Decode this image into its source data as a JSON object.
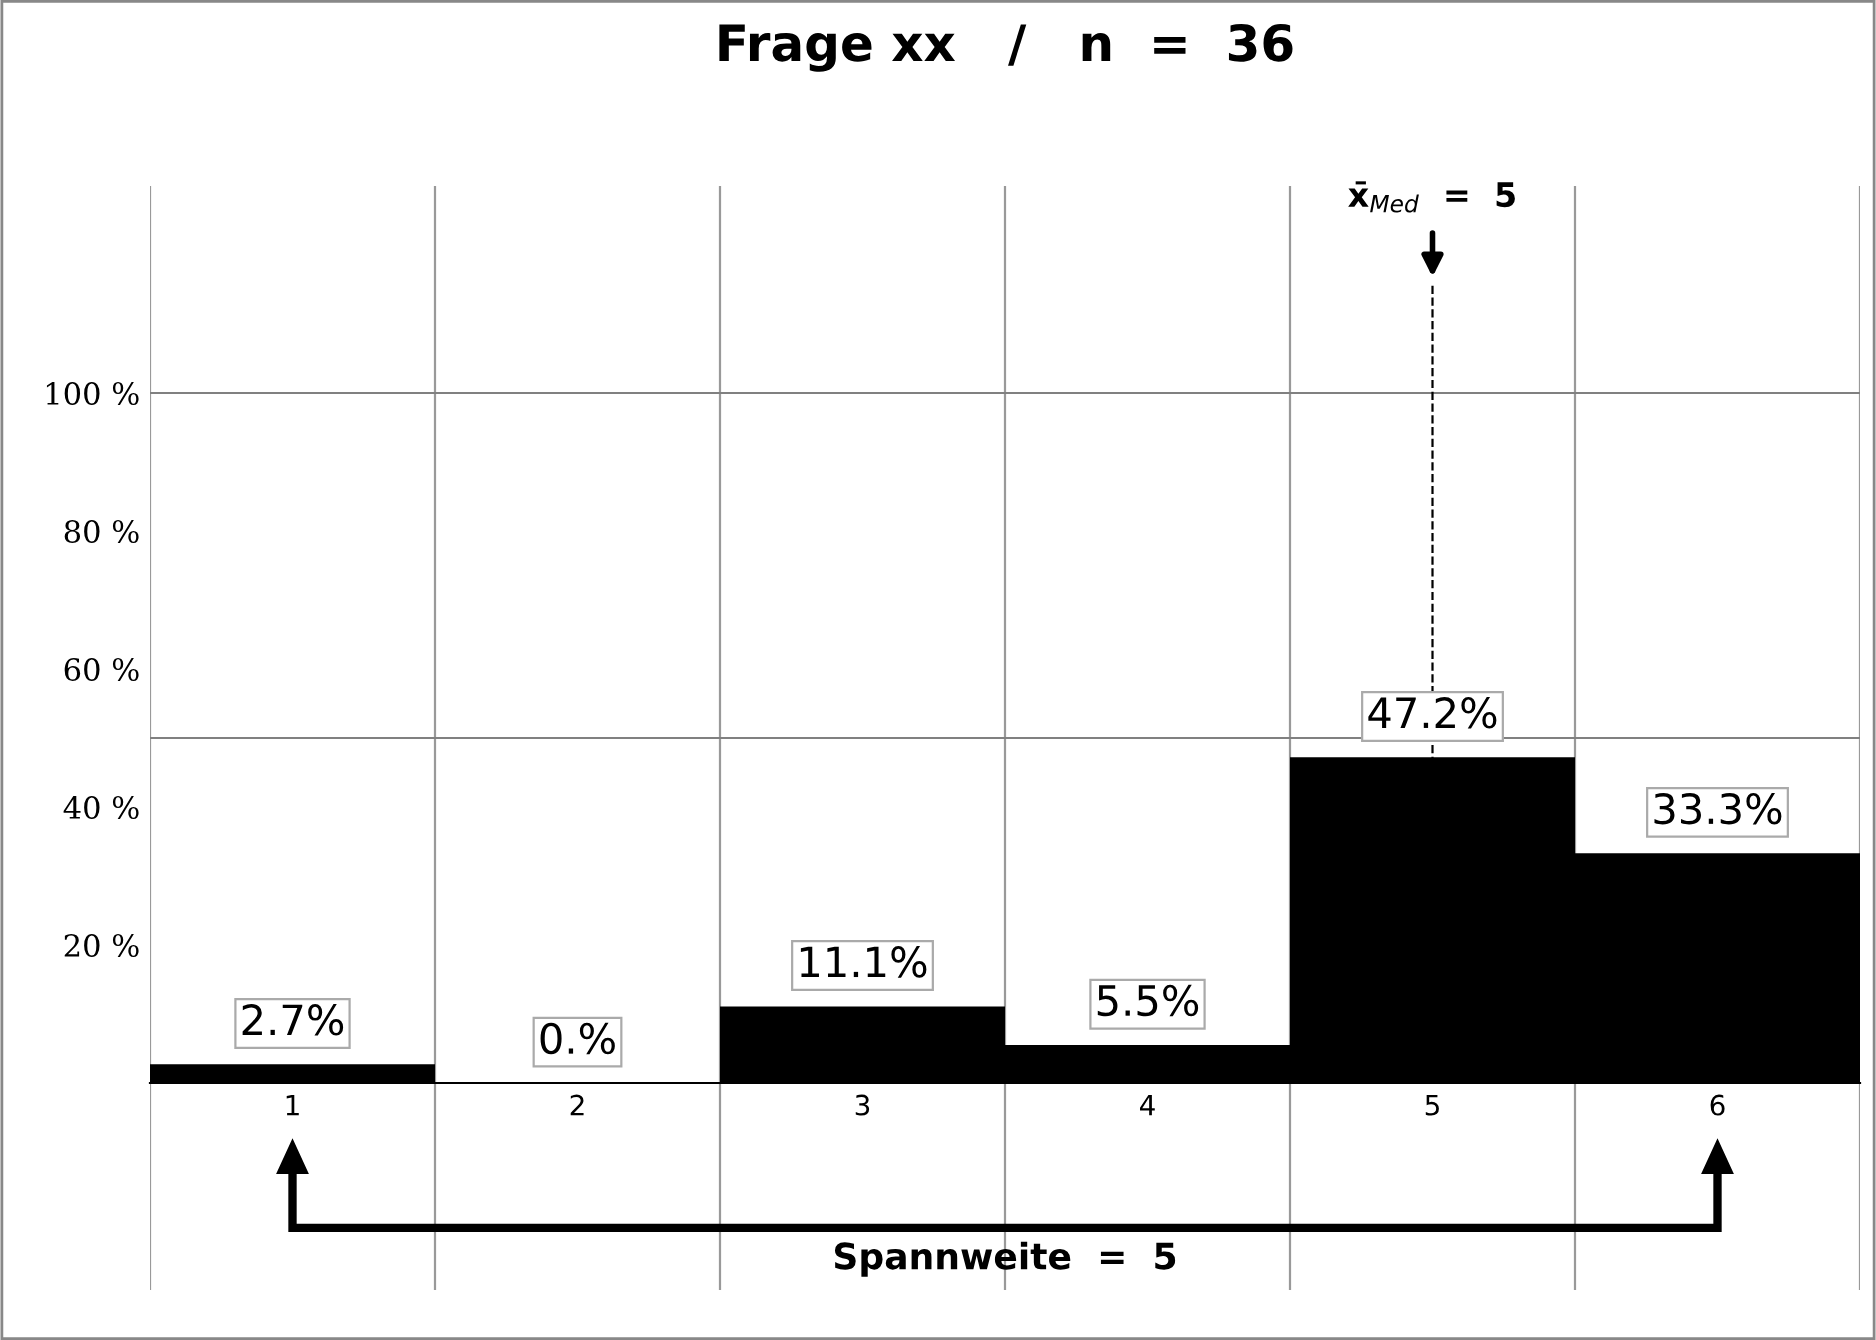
{
  "chart_data": {
    "type": "bar",
    "title": "Frage xx   /   n  =  36",
    "categories": [
      "1",
      "2",
      "3",
      "4",
      "5",
      "6"
    ],
    "values": [
      2.7,
      0,
      11.1,
      5.5,
      47.2,
      33.3
    ],
    "value_labels": [
      "2.7%",
      "0.%",
      "11.1%",
      "5.5%",
      "47.2%",
      "33.3%"
    ],
    "color": "#000000",
    "ylim": [
      -30,
      130
    ],
    "yticks": [
      {
        "value": 20,
        "label": "20 %"
      },
      {
        "value": 40,
        "label": "40 %"
      },
      {
        "value": 60,
        "label": "60 %"
      },
      {
        "value": 80,
        "label": "80 %"
      },
      {
        "value": 100,
        "label": "100 %"
      }
    ],
    "grid": "x",
    "ref_lines": [
      {
        "axis": "y",
        "value": 50,
        "label": null,
        "color": "#808080",
        "line_style": "solid"
      },
      {
        "axis": "y",
        "value": 100,
        "label": null,
        "color": "#808080",
        "line_style": "solid"
      },
      {
        "axis": "x",
        "value": "5",
        "label": "x̄$_{Med}$  =  5",
        "color": "#000000",
        "line_style": "dashed"
      }
    ],
    "annotations": [
      "Spannweite  =  5"
    ]
  }
}
